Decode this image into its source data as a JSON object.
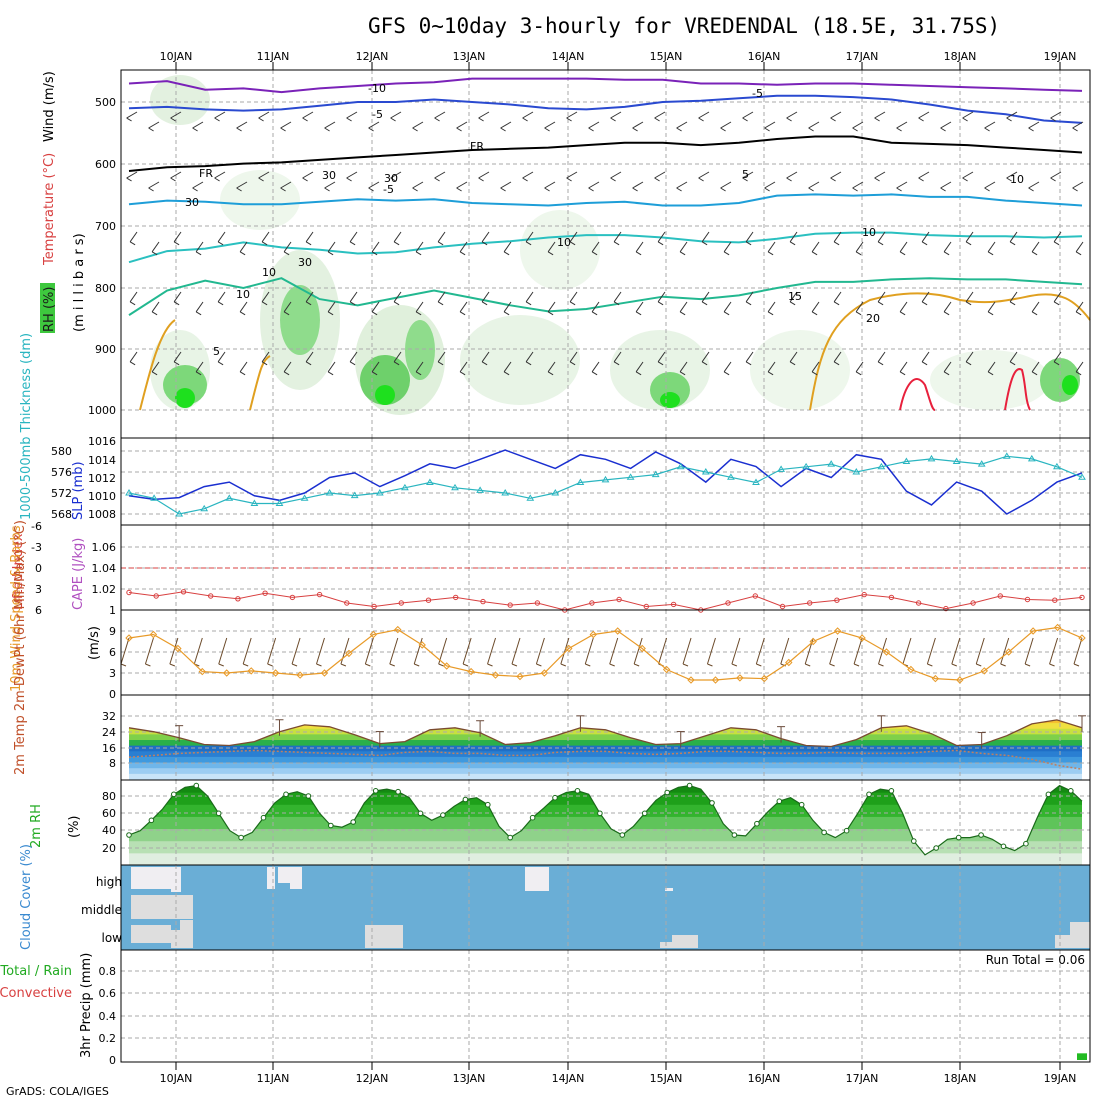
{
  "title": "GFS 0~10day 3-hourly for VREDENDAL (18.5E, 31.75S)",
  "credit": "GrADS: COLA/IGES",
  "colors": {
    "grid": "#aaaaaa",
    "slp": "#1a2fd0",
    "thickness": "#2ab5c0",
    "lifted": "#d84040",
    "wind10": "#e89a28",
    "barb": "#6b4a2a",
    "tempLine": "#7a4a30",
    "rhLine": "#1a6a1a",
    "cloudBlue": "#6aaed6",
    "cloudWhite": "#f0eef2",
    "cloudGray": "#dedede",
    "precip": "#22bb22"
  },
  "chart_data": {
    "type": "multi-panel meteogram",
    "days": [
      "10JAN",
      "11JAN",
      "12JAN",
      "13JAN",
      "14JAN",
      "15JAN",
      "16JAN",
      "17JAN",
      "18JAN",
      "19JAN"
    ],
    "panels": [
      {
        "id": "upper",
        "ylabel_parts": [
          "RH (%)",
          "Temperature (°C)",
          "Wind (m/s)"
        ],
        "ylabel2": "(m i l l i b a r s)",
        "yticks": [
          "500",
          "600",
          "700",
          "800",
          "900",
          "1000"
        ],
        "isotherm_labels": [
          "-10",
          "-5",
          "FR",
          "-5",
          "FR",
          "-5",
          "5",
          "10",
          "10",
          "15",
          "20",
          "10",
          "30",
          "30",
          "30",
          "30",
          "10",
          "10",
          "5"
        ],
        "isotherms": [
          {
            "name": "-10",
            "color": "#7a22b8",
            "values": [
              470,
              466,
              480,
              478,
              484,
              478,
              474,
              470,
              468,
              462,
              462,
              462,
              462,
              464,
              464,
              470,
              470,
              472,
              470,
              470,
              472,
              474,
              476,
              478,
              480,
              482
            ]
          },
          {
            "name": "-5",
            "color": "#2a4ad0",
            "values": [
              510,
              508,
              512,
              514,
              512,
              506,
              500,
              500,
              496,
              500,
              504,
              510,
              512,
              508,
              500,
              498,
              494,
              490,
              490,
              492,
              496,
              504,
              514,
              520,
              530,
              534
            ]
          },
          {
            "name": "FR",
            "color": "#000000",
            "values": [
              612,
              606,
              604,
              600,
              598,
              594,
              590,
              586,
              582,
              578,
              576,
              574,
              570,
              566,
              566,
              570,
              566,
              560,
              556,
              556,
              566,
              568,
              570,
              574,
              578,
              582
            ]
          },
          {
            "name": "5",
            "color": "#1e9ed8",
            "values": [
              666,
              660,
              662,
              666,
              666,
              662,
              658,
              660,
              658,
              664,
              666,
              668,
              664,
              662,
              668,
              668,
              664,
              652,
              650,
              652,
              650,
              654,
              654,
              660,
              664,
              668
            ]
          },
          {
            "name": "10",
            "color": "#2ac0c0",
            "values": [
              760,
              742,
              738,
              728,
              736,
              740,
              746,
              744,
              736,
              730,
              726,
              720,
              716,
              716,
              720,
              726,
              728,
              722,
              714,
              712,
              712,
              716,
              718,
              718,
              720,
              718
            ]
          },
          {
            "name": "15",
            "color": "#22b890",
            "values": [
              846,
              806,
              790,
              802,
              786,
              820,
              830,
              818,
              806,
              818,
              830,
              840,
              836,
              826,
              816,
              820,
              814,
              802,
              792,
              792,
              788,
              786,
              788,
              788,
              792,
              796
            ]
          }
        ]
      },
      {
        "id": "thickness_slp",
        "ylabel_left": "1000-500mb Thickness (dm)",
        "ylabel_right": "SLP (mb)",
        "left_ticks": [
          "580",
          "576",
          "572",
          "568"
        ],
        "right_ticks": [
          "1016",
          "1014",
          "1012",
          "1010",
          "1008"
        ],
        "slp": [
          1010.0,
          1009.6,
          1009.8,
          1011.0,
          1011.5,
          1010.0,
          1009.5,
          1010.3,
          1012.0,
          1012.5,
          1011.0,
          1012.2,
          1013.5,
          1013.0,
          1014.0,
          1015.0,
          1014.0,
          1013.0,
          1014.5,
          1014.0,
          1013.0,
          1014.8,
          1013.5,
          1011.5,
          1014.0,
          1013.2,
          1011.0,
          1013.0,
          1012.0,
          1014.5,
          1014.0,
          1010.5,
          1009.0,
          1011.5,
          1010.5,
          1008.0,
          1009.5,
          1011.5,
          1012.5
        ],
        "thickness": [
          572.0,
          571.0,
          568.0,
          569.0,
          571.0,
          570.0,
          570.0,
          571.0,
          572.0,
          571.5,
          572.0,
          573.0,
          574.0,
          573.0,
          572.5,
          572.0,
          571.0,
          572.0,
          574.0,
          574.5,
          575.0,
          575.5,
          577.0,
          576.0,
          575.0,
          574.0,
          576.5,
          577.0,
          577.5,
          576.0,
          577.0,
          578.0,
          578.5,
          578.0,
          577.5,
          579.0,
          578.5,
          577.0,
          575.0
        ]
      },
      {
        "id": "li_cape",
        "ylabel_left": "Lifted Index",
        "ylabel_right": "CAPE (J/kg)",
        "left_ticks": [
          "-6",
          "-3",
          "0",
          "3",
          "6"
        ],
        "right_ticks": [
          "1.06",
          "1.04",
          "1.02",
          "1"
        ],
        "lifted_index": [
          3.5,
          4.0,
          3.4,
          4.0,
          4.4,
          3.6,
          4.2,
          3.8,
          5.0,
          5.5,
          5.0,
          4.6,
          4.2,
          4.8,
          5.3,
          5.0,
          6.0,
          5.0,
          4.5,
          5.5,
          5.2,
          6.0,
          5.0,
          4.0,
          5.5,
          5.0,
          4.6,
          3.8,
          4.2,
          5.0,
          5.8,
          5.0,
          4.0,
          4.5,
          4.6,
          4.2
        ]
      },
      {
        "id": "wind10m",
        "ylabel_left": "10m Wind Speed & Barbs",
        "ylabel_right": "(m/s)",
        "yticks": [
          "9",
          "6",
          "3",
          "0"
        ],
        "speed": [
          8.0,
          8.5,
          6.5,
          3.2,
          3.0,
          3.3,
          3.0,
          2.7,
          3.0,
          5.8,
          8.5,
          9.2,
          7.0,
          4.0,
          3.2,
          2.7,
          2.5,
          3.0,
          6.5,
          8.5,
          9.0,
          6.5,
          3.5,
          2.0,
          2.0,
          2.3,
          2.2,
          4.5,
          7.5,
          9.0,
          8.0,
          6.0,
          3.5,
          2.2,
          2.0,
          3.3,
          6.0,
          9.0,
          9.5,
          8.0
        ]
      },
      {
        "id": "temp2m",
        "ylabel": "2m Temp 2m DewPt (6hr Min/Max) (°C)",
        "yticks": [
          "32",
          "24",
          "16",
          "8"
        ],
        "temp": [
          26.0,
          24.0,
          21.0,
          17.5,
          17.0,
          19.0,
          24.0,
          27.5,
          26.5,
          22.5,
          18.0,
          19.0,
          25.0,
          26.0,
          23.5,
          17.5,
          18.5,
          22.0,
          26.0,
          25.0,
          21.0,
          17.5,
          18.0,
          22.0,
          26.0,
          25.0,
          20.5,
          17.0,
          16.5,
          20.0,
          26.0,
          27.0,
          23.0,
          17.0,
          17.5,
          22.0,
          28.0,
          30.0,
          26.0
        ],
        "dewpoint": [
          11.0,
          12.0,
          13.0,
          13.5,
          14.0,
          14.5,
          14.0,
          13.5,
          13.0,
          12.5,
          12.0,
          13.5,
          14.0,
          13.0,
          13.0,
          12.0,
          12.0,
          13.5,
          14.0,
          14.0,
          13.0,
          12.5,
          13.0,
          14.0,
          14.0,
          13.5,
          13.0,
          13.0,
          13.5,
          13.0,
          13.0,
          13.0,
          14.0,
          14.5,
          13.0,
          12.0,
          10.0,
          7.0,
          5.0
        ],
        "band_colors": [
          "#c8e4f8",
          "#9ccdf2",
          "#6fb6ea",
          "#3f99de",
          "#2a7fd2",
          "#1f6ec6",
          "#2ab04a",
          "#7fd04a",
          "#c8e040",
          "#f0e040",
          "#f5c030",
          "#f08a20",
          "#e05a1a",
          "#c02a10"
        ]
      },
      {
        "id": "rh2m",
        "ylabel_left": "2m RH",
        "ylabel_right": "(%)",
        "yticks": [
          "80",
          "60",
          "40",
          "20"
        ],
        "rh": [
          35,
          40,
          52,
          65,
          82,
          90,
          92,
          80,
          60,
          40,
          32,
          38,
          55,
          72,
          82,
          85,
          80,
          60,
          46,
          44,
          50,
          72,
          86,
          88,
          85,
          78,
          60,
          52,
          58,
          68,
          76,
          78,
          70,
          45,
          32,
          40,
          55,
          66,
          78,
          84,
          86,
          82,
          60,
          42,
          35,
          45,
          60,
          75,
          84,
          90,
          92,
          88,
          72,
          48,
          35,
          34,
          48,
          62,
          74,
          78,
          70,
          52,
          38,
          32,
          40,
          60,
          82,
          88,
          86,
          60,
          28,
          12,
          20,
          30,
          32,
          32,
          35,
          30,
          22,
          17,
          25,
          55,
          82,
          92,
          86,
          74
        ]
      },
      {
        "id": "cloud",
        "ylabel": "Cloud Cover (%)",
        "levels": [
          "high",
          "middle",
          "low"
        ]
      },
      {
        "id": "precip",
        "ylabel_left": "Total / Rain",
        "ylabel_left2": "Convective",
        "ylabel_right": "3hr Precip (mm)",
        "yticks": [
          "0.8",
          "0.6",
          "0.4",
          "0.2",
          "0"
        ],
        "run_total_label": "Run Total = 0.06",
        "values": [
          0,
          0,
          0,
          0,
          0,
          0,
          0,
          0,
          0,
          0,
          0,
          0,
          0,
          0,
          0,
          0,
          0,
          0,
          0,
          0,
          0,
          0,
          0,
          0,
          0,
          0,
          0,
          0,
          0,
          0,
          0,
          0,
          0,
          0,
          0,
          0,
          0,
          0,
          0.06
        ]
      }
    ]
  }
}
